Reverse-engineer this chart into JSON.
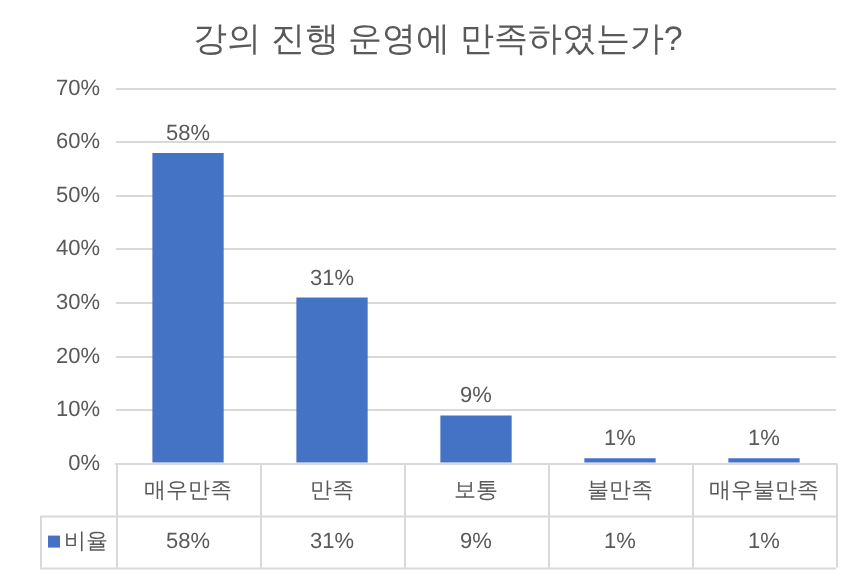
{
  "chart_data": {
    "type": "bar",
    "title": "강의 진행 운영에 만족하였는가?",
    "categories": [
      "매우만족",
      "만족",
      "보통",
      "불만족",
      "매우불만족"
    ],
    "series": [
      {
        "name": "비율",
        "color": "#4472c4",
        "values": [
          58,
          31,
          9,
          1,
          1
        ],
        "value_labels": [
          "58%",
          "31%",
          "9%",
          "1%",
          "1%"
        ]
      }
    ],
    "ylim": [
      0,
      70
    ],
    "yticks": [
      {
        "value": 0,
        "label": "0%"
      },
      {
        "value": 10,
        "label": "10%"
      },
      {
        "value": 20,
        "label": "20%"
      },
      {
        "value": 30,
        "label": "30%"
      },
      {
        "value": 40,
        "label": "40%"
      },
      {
        "value": 50,
        "label": "50%"
      },
      {
        "value": 60,
        "label": "60%"
      },
      {
        "value": 70,
        "label": "70%"
      }
    ],
    "grid": "y"
  }
}
